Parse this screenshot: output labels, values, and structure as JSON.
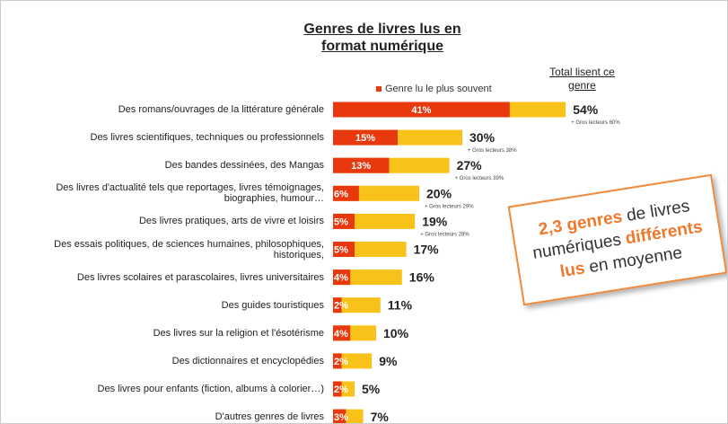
{
  "chart_data": {
    "type": "bar",
    "title": "Genres de livres lus en format numérique",
    "total_header": "Total lisent ce genre",
    "categories": [
      "Des romans/ouvrages de la littérature générale",
      "Des livres scientifiques, techniques ou professionnels",
      "Des bandes dessinées, des Mangas",
      "Des livres d'actualité tels que reportages, livres témoignages,\nbiographies, humour…",
      "Des livres pratiques, arts de vivre et loisirs",
      "Des essais politiques, de sciences humaines, philosophiques,\nhistoriques,",
      "Des livres scolaires et parascolaires, livres universitaires",
      "Des guides touristiques",
      "Des livres sur la religion et l'ésotérisme",
      "Des dictionnaires et encyclopédies",
      "Des livres pour enfants (fiction, albums à colorier…)",
      "D'autres genres de livres"
    ],
    "series": [
      {
        "name": "Genre lu le plus souvent",
        "color": "#e8380d",
        "values": [
          41,
          15,
          13,
          6,
          5,
          5,
          4,
          2,
          4,
          2,
          2,
          3
        ],
        "value_labels": [
          "41%",
          "15%",
          "13%",
          "6%",
          "5%",
          "5%",
          "4%",
          "2%",
          "4%",
          "2%",
          "2%",
          "3%"
        ]
      },
      {
        "name": "Total lisent ce genre",
        "color": "#f9c21a",
        "values": [
          54,
          30,
          27,
          20,
          19,
          17,
          16,
          11,
          10,
          9,
          5,
          7
        ],
        "value_labels": [
          "54%",
          "30%",
          "27%",
          "20%",
          "19%",
          "17%",
          "16%",
          "11%",
          "10%",
          "9%",
          "5%",
          "7%"
        ]
      }
    ],
    "annotations": [
      "+ Gros lecteurs 60%",
      "+ Gros lecteurs 38%",
      "+ Gros lecteurs 39%",
      "+ Gros lecteurs 29%",
      "+ Gros lecteurs 28%",
      null,
      null,
      null,
      null,
      null,
      null,
      null
    ],
    "legend": "top"
  },
  "callout": [
    [
      {
        "text": "2,3 genres",
        "highlight": true
      },
      {
        "text": " de livres",
        "highlight": false
      }
    ],
    [
      {
        "text": "numériques ",
        "highlight": false
      },
      {
        "text": "différents",
        "highlight": true
      }
    ],
    [
      {
        "text": "lus",
        "highlight": true
      },
      {
        "text": " en moyenne",
        "highlight": false
      }
    ]
  ]
}
